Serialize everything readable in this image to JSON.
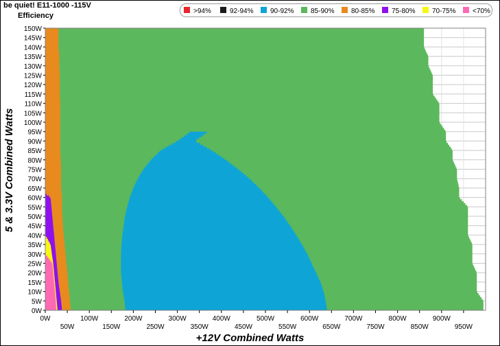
{
  "window": {
    "title": "be quiet! E11-1000 -115V",
    "subtitle": "Efficiency"
  },
  "legend": {
    "items": [
      {
        "label": ">94%",
        "color": "#e8262e"
      },
      {
        "label": "92-94%",
        "color": "#1b1b1b"
      },
      {
        "label": "90-92%",
        "color": "#0ea5d6"
      },
      {
        "label": "85-90%",
        "color": "#5cb85c"
      },
      {
        "label": "80-85%",
        "color": "#e88a1e"
      },
      {
        "label": "75-80%",
        "color": "#8e10ee"
      },
      {
        "label": "70-75%",
        "color": "#f7f713"
      },
      {
        "label": "<70%",
        "color": "#ff69b4"
      }
    ]
  },
  "chart_data": {
    "type": "heatmap",
    "title": "be quiet! E11-1000 -115V",
    "subtitle": "Efficiency",
    "xlabel": "+12V Combined Watts",
    "ylabel": "5 & 3.3V Combined Watts",
    "xlim": [
      0,
      1000
    ],
    "ylim": [
      0,
      150
    ],
    "x_ticks": [
      "0W",
      "50W",
      "100W",
      "150W",
      "200W",
      "250W",
      "300W",
      "350W",
      "400W",
      "450W",
      "500W",
      "550W",
      "600W",
      "650W",
      "700W",
      "750W",
      "800W",
      "850W",
      "900W",
      "950W"
    ],
    "y_ticks": [
      "0W",
      "5W",
      "10W",
      "15W",
      "20W",
      "25W",
      "30W",
      "35W",
      "40W",
      "45W",
      "50W",
      "55W",
      "60W",
      "65W",
      "70W",
      "75W",
      "80W",
      "85W",
      "90W",
      "95W",
      "100W",
      "105W",
      "110W",
      "115W",
      "120W",
      "125W",
      "130W",
      "135W",
      "140W",
      "145W",
      "150W"
    ],
    "grid": true,
    "legend_position": "top-right",
    "outer_boundary": {
      "y": [
        0,
        5,
        10,
        15,
        20,
        25,
        30,
        35,
        40,
        45,
        50,
        55,
        60,
        65,
        70,
        75,
        80,
        85,
        90,
        95,
        100,
        105,
        110,
        115,
        120,
        125,
        130,
        135,
        140,
        145,
        150
      ],
      "max_x": [
        995,
        995,
        980,
        980,
        980,
        970,
        970,
        970,
        960,
        960,
        960,
        960,
        940,
        940,
        935,
        935,
        925,
        925,
        910,
        910,
        895,
        895,
        895,
        880,
        880,
        880,
        870,
        870,
        860,
        860,
        860
      ]
    },
    "regions": [
      {
        "range": "<70%",
        "ycut": [
          0,
          5,
          10,
          15,
          20,
          25,
          30
        ],
        "x_max": [
          25,
          24,
          22,
          20,
          18,
          16,
          0
        ]
      },
      {
        "range": "70-75%",
        "ycut": [
          0,
          5,
          10,
          15,
          20,
          25,
          30,
          35,
          40
        ],
        "x_max": [
          28,
          26,
          24,
          22,
          20,
          18,
          15,
          12,
          0
        ]
      },
      {
        "range": "75-80%",
        "ycut": [
          0,
          5,
          10,
          15,
          20,
          25,
          30,
          35,
          40,
          45,
          50,
          55,
          60,
          62
        ],
        "x_max": [
          38,
          36,
          33,
          30,
          28,
          26,
          24,
          22,
          20,
          18,
          16,
          14,
          12,
          0
        ]
      },
      {
        "range": "80-85%",
        "ycut": [
          0,
          5,
          10,
          15,
          20,
          25,
          30,
          35,
          40,
          45,
          50,
          55,
          60,
          65,
          70,
          75,
          80,
          85,
          90,
          95,
          100,
          105,
          110,
          115,
          120,
          125,
          130,
          135,
          140,
          145,
          150
        ],
        "x_max": [
          58,
          56,
          54,
          52,
          50,
          48,
          46,
          44,
          42,
          40,
          39,
          38,
          38,
          36,
          36,
          36,
          35,
          34,
          34,
          34,
          34,
          34,
          34,
          33,
          33,
          33,
          32,
          32,
          30,
          30,
          30
        ]
      },
      {
        "range": "90-92%",
        "y": [
          0,
          5,
          10,
          15,
          20,
          25,
          30,
          35,
          40,
          45,
          50,
          55,
          60,
          65,
          70,
          75,
          80,
          85,
          90,
          95
        ],
        "x_min": [
          182,
          180,
          176,
          174,
          172,
          172,
          172,
          173,
          175,
          178,
          181,
          186,
          192,
          200,
          210,
          223,
          240,
          262,
          300,
          330
        ],
        "x_max": [
          640,
          637,
          632,
          625,
          615,
          605,
          595,
          583,
          570,
          556,
          541,
          524,
          506,
          486,
          464,
          438,
          410,
          378,
          340,
          370
        ]
      }
    ],
    "background_range": "85-90%"
  }
}
